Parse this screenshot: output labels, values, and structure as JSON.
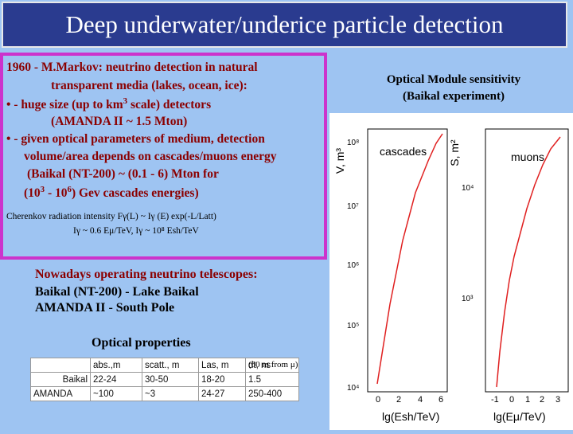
{
  "title": "Deep underwater/underice particle detection",
  "intro": {
    "line1": "1960 - M.Markov: neutrino detection in natural",
    "line2": "transparent media (lakes, ocean, ice):",
    "bullet": "•",
    "line3_pre": "- huge size (up to km",
    "line3_sup": "3",
    "line3_post": " scale) detectors",
    "line4": "(AMANDA II ~ 1.5 Mton)",
    "line5": "- given optical parameters of medium, detection",
    "line6": "volume/area depends on cascades/muons energy",
    "line7": "(Baikal (NT-200) ~ (0.1 - 6) Mton for",
    "line8_a": "(10",
    "line8_b": "3",
    "line8_c": " - 10",
    "line8_d": "6",
    "line8_e": ") Gev cascades energies)",
    "formula1": "Cherenkov radiation intensity Fγ(L) ~ Iγ (E)  exp(-L/Latt)",
    "formula2": "Iγ ~ 0.6 Eμ/TeV,   Iγ ~ 10⁸ Esh/TeV"
  },
  "operating": {
    "heading": "Nowadays operating neutrino telescopes:",
    "line1": "Baikal (NT-200) - Lake Baikal",
    "line2": "AMANDA II - South Pole"
  },
  "optical": {
    "label": "Optical properties",
    "note": "(60 m from μ)",
    "headers": [
      "",
      "abs.,m",
      "scatt., m",
      "Las, m",
      "dt, ns"
    ],
    "rows": [
      [
        "Baikal",
        "22-24",
        "30-50",
        "18-20",
        "1.5"
      ],
      [
        "AMANDA",
        "~100",
        "~3",
        "24-27",
        "250-400"
      ]
    ]
  },
  "plot_caption": {
    "line1": "Optical Module sensitivity",
    "line2": "(Baikal experiment)"
  },
  "plots": {
    "left": {
      "ylabel": "V, m³",
      "legend": "cascades",
      "yticks": [
        "10⁸",
        "10⁷",
        "10⁶",
        "10⁵",
        "10⁴"
      ],
      "xticks": [
        "0",
        "2",
        "4",
        "6"
      ],
      "xlabel": "lg(Esh/TeV)"
    },
    "right": {
      "ylabel": "S, m²",
      "legend": "muons",
      "yticks": [
        "10⁴",
        "10³"
      ],
      "xticks": [
        "-1",
        "0",
        "1",
        "2",
        "3"
      ],
      "xlabel": "lg(Eμ/TeV)"
    }
  },
  "colors": {
    "background": "#9ec4f2",
    "title_bar": "#2a3b8f",
    "box_border": "#cc33cc",
    "text_red": "#8b0000",
    "curve": "#e02020"
  }
}
